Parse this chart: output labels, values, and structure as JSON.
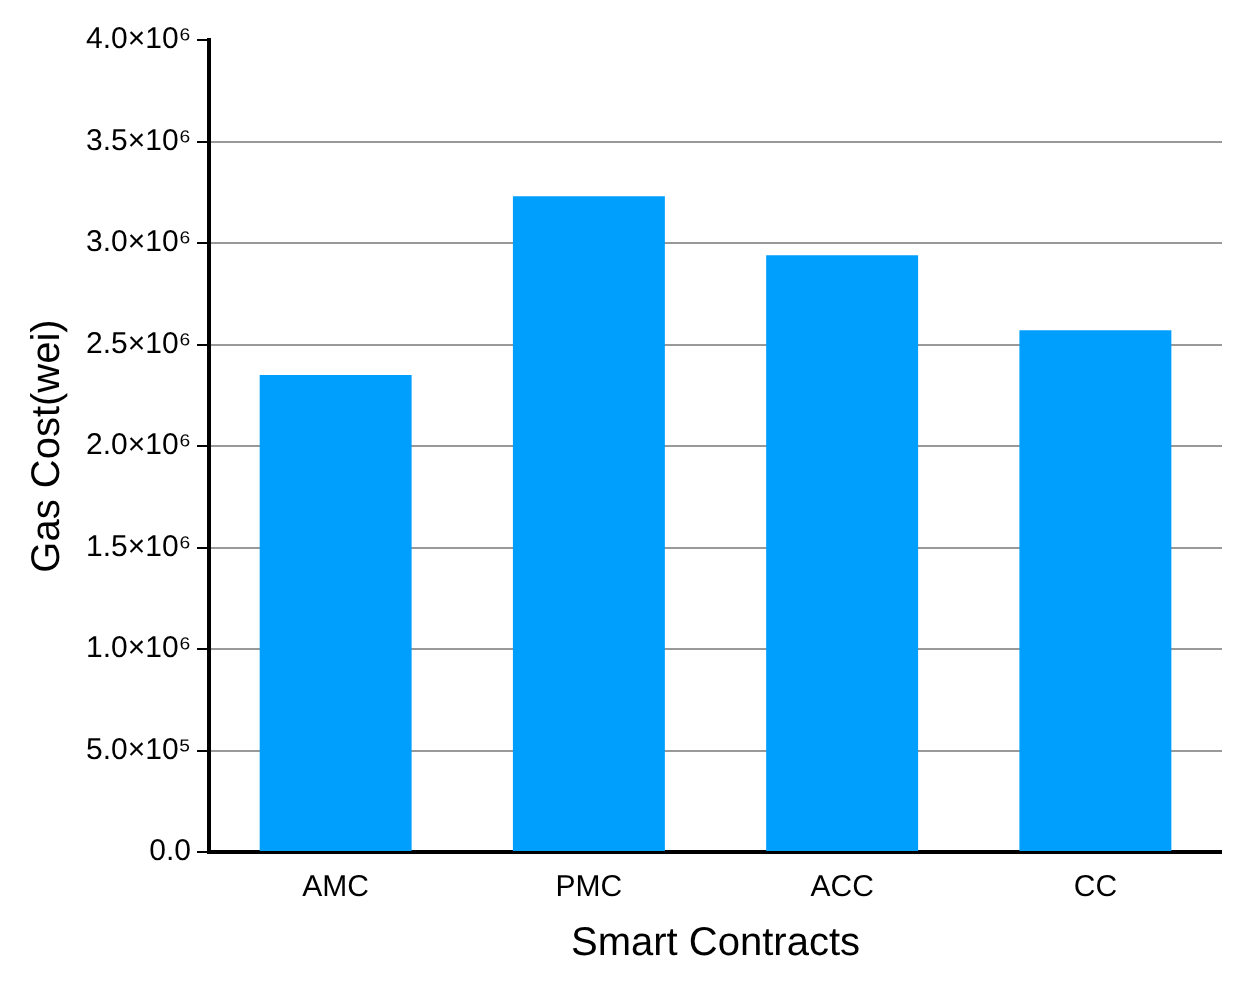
{
  "chart_data": {
    "type": "bar",
    "xlabel": "Smart Contracts",
    "ylabel": "Gas Cost(wei)",
    "categories": [
      "AMC",
      "PMC",
      "ACC",
      "CC"
    ],
    "values": [
      2350000,
      3230000,
      2940000,
      2570000
    ],
    "color": "#009ffd",
    "ylim": [
      0,
      4000000
    ],
    "yticks": [
      {
        "value": 0,
        "label": "0.0"
      },
      {
        "value": 500000,
        "label": "5.0×10⁵"
      },
      {
        "value": 1000000,
        "label": "1.0×10⁶"
      },
      {
        "value": 1500000,
        "label": "1.5×10⁶"
      },
      {
        "value": 2000000,
        "label": "2.0×10⁶"
      },
      {
        "value": 2500000,
        "label": "2.5×10⁶"
      },
      {
        "value": 3000000,
        "label": "3.0×10⁶"
      },
      {
        "value": 3500000,
        "label": "3.5×10⁶"
      },
      {
        "value": 4000000,
        "label": "4.0×10⁶"
      }
    ],
    "grid": "y",
    "legend": false
  }
}
